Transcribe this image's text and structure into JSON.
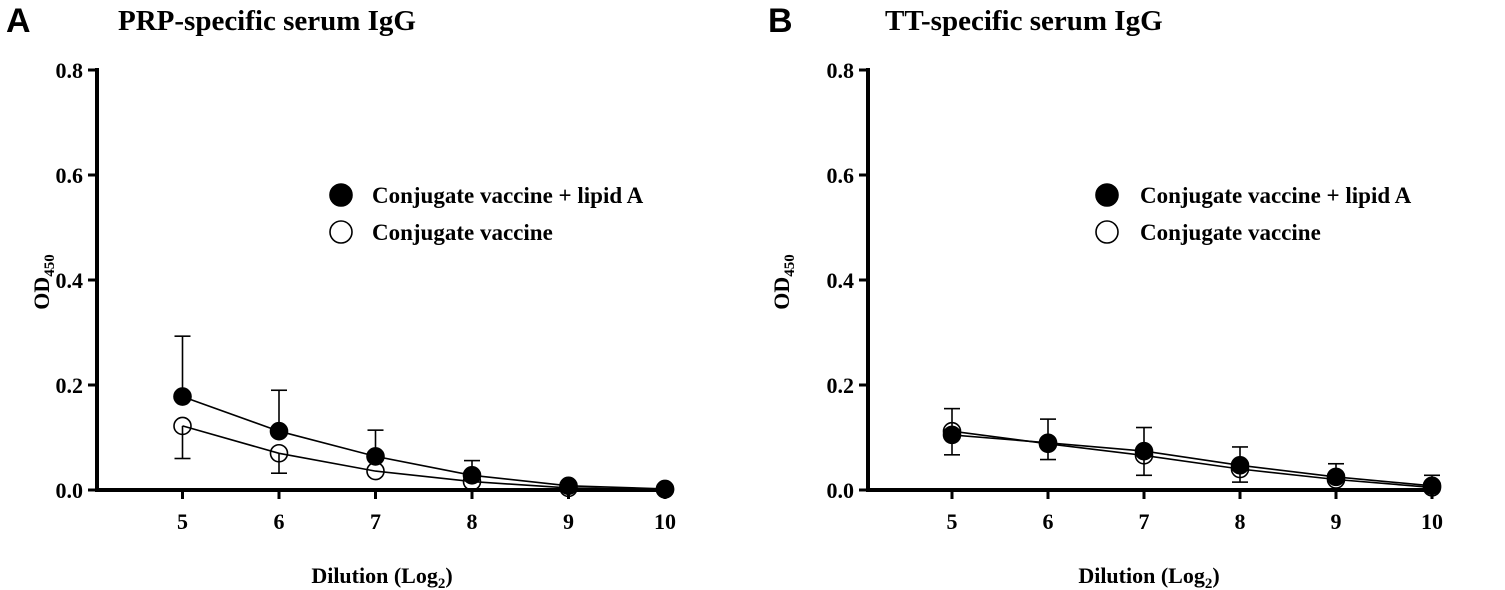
{
  "chart_data": [
    {
      "panel": "A",
      "type": "line",
      "title": "PRP-specific serum IgG",
      "xlabel": "Dilution (Log",
      "xlabel_sub": "2",
      "xlabel_close": ")",
      "ylabel": "OD",
      "ylabel_sub": "450",
      "xlim": [
        4.0,
        10.0
      ],
      "ylim": [
        0.0,
        0.8
      ],
      "xticks": [
        "5",
        "6",
        "7",
        "8",
        "9",
        "10"
      ],
      "yticks": [
        "0.0",
        "0.2",
        "0.4",
        "0.6",
        "0.8"
      ],
      "x": [
        5,
        6,
        7,
        8,
        9,
        10
      ],
      "legend_position": "upper-right",
      "series": [
        {
          "name": "Conjugate vaccine + lipid A",
          "marker": "filled-circle",
          "values": [
            0.178,
            0.112,
            0.064,
            0.028,
            0.008,
            0.002
          ],
          "error": [
            0.115,
            0.078,
            0.05,
            0.028,
            0.0,
            0.0
          ]
        },
        {
          "name": "Conjugate vaccine",
          "marker": "open-circle",
          "values": [
            0.122,
            0.07,
            0.036,
            0.016,
            0.004,
            0.001
          ],
          "error": [
            0.062,
            0.038,
            0.0,
            0.0,
            0.0,
            0.0
          ]
        }
      ]
    },
    {
      "panel": "B",
      "type": "line",
      "title": "TT-specific serum IgG",
      "xlabel": "Dilution (Log",
      "xlabel_sub": "2",
      "xlabel_close": ")",
      "ylabel": "OD",
      "ylabel_sub": "450",
      "xlim": [
        4.0,
        10.0
      ],
      "ylim": [
        0.0,
        0.8
      ],
      "xticks": [
        "5",
        "6",
        "7",
        "8",
        "9",
        "10"
      ],
      "yticks": [
        "0.0",
        "0.2",
        "0.4",
        "0.6",
        "0.8"
      ],
      "x": [
        5,
        6,
        7,
        8,
        9,
        10
      ],
      "legend_position": "upper-right",
      "series": [
        {
          "name": "Conjugate vaccine + lipid A",
          "marker": "filled-circle",
          "values": [
            0.105,
            0.09,
            0.074,
            0.047,
            0.025,
            0.008
          ],
          "error": [
            0.05,
            0.045,
            0.045,
            0.035,
            0.025,
            0.02
          ]
        },
        {
          "name": "Conjugate vaccine",
          "marker": "open-circle",
          "values": [
            0.112,
            0.088,
            0.066,
            0.04,
            0.02,
            0.005
          ],
          "error": [
            0.045,
            0.03,
            0.038,
            0.025,
            0.0,
            0.0
          ]
        }
      ]
    }
  ]
}
